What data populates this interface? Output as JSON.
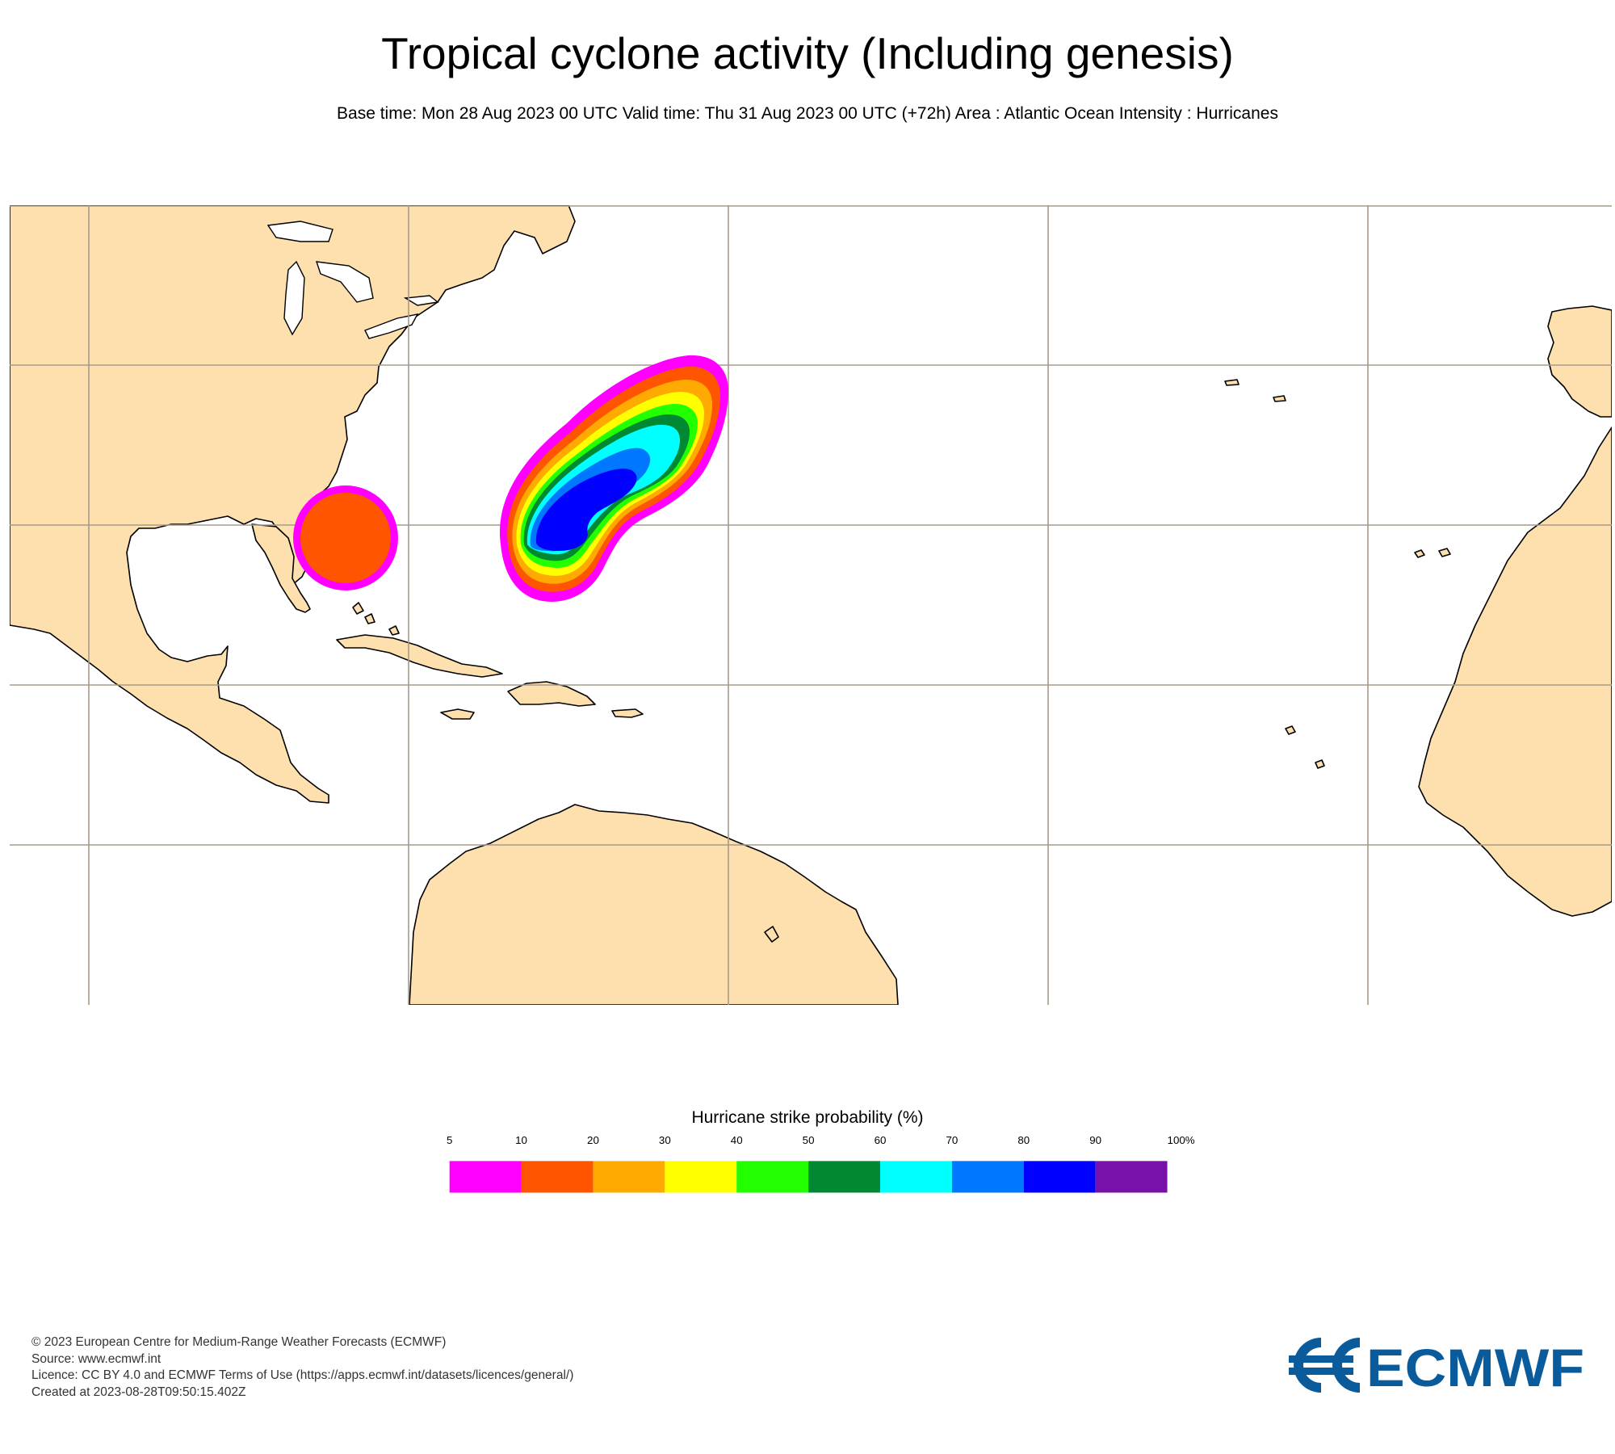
{
  "header": {
    "title": "Tropical cyclone activity (Including genesis)",
    "subtitle": "Base time: Mon 28 Aug 2023 00 UTC Valid time: Thu 31 Aug 2023 00 UTC (+72h) Area : Atlantic Ocean Intensity : Hurricanes"
  },
  "map": {
    "area": "Atlantic Ocean",
    "colors": {
      "land": "#fde0ad",
      "ocean": "#ffffff",
      "coast": "#000000",
      "grid": "#a69b8a"
    }
  },
  "legend": {
    "title": "Hurricane strike probability (%)",
    "ticks": [
      "5",
      "10",
      "20",
      "30",
      "40",
      "50",
      "60",
      "70",
      "80",
      "90",
      "100%"
    ],
    "bins": [
      {
        "from": 5,
        "to": 10,
        "color": "#ff00ff"
      },
      {
        "from": 10,
        "to": 20,
        "color": "#ff5500"
      },
      {
        "from": 20,
        "to": 30,
        "color": "#ffaa00"
      },
      {
        "from": 30,
        "to": 40,
        "color": "#ffff00"
      },
      {
        "from": 40,
        "to": 50,
        "color": "#22ff00"
      },
      {
        "from": 50,
        "to": 60,
        "color": "#008833"
      },
      {
        "from": 60,
        "to": 70,
        "color": "#00ffff"
      },
      {
        "from": 70,
        "to": 80,
        "color": "#0077ff"
      },
      {
        "from": 80,
        "to": 90,
        "color": "#0000ff"
      },
      {
        "from": 90,
        "to": 100,
        "color": "#7711aa"
      }
    ]
  },
  "footer": {
    "copyright": "© 2023 European Centre for Medium-Range Weather Forecasts (ECMWF)",
    "source": "Source: www.ecmwf.int",
    "licence": "Licence: CC BY 4.0 and ECMWF Terms of Use (https://apps.ecmwf.int/datasets/licences/general/)",
    "created": "Created at 2023-08-28T09:50:15.402Z"
  },
  "logo": {
    "text": "ECMWF",
    "color": "#0a5b9c"
  }
}
